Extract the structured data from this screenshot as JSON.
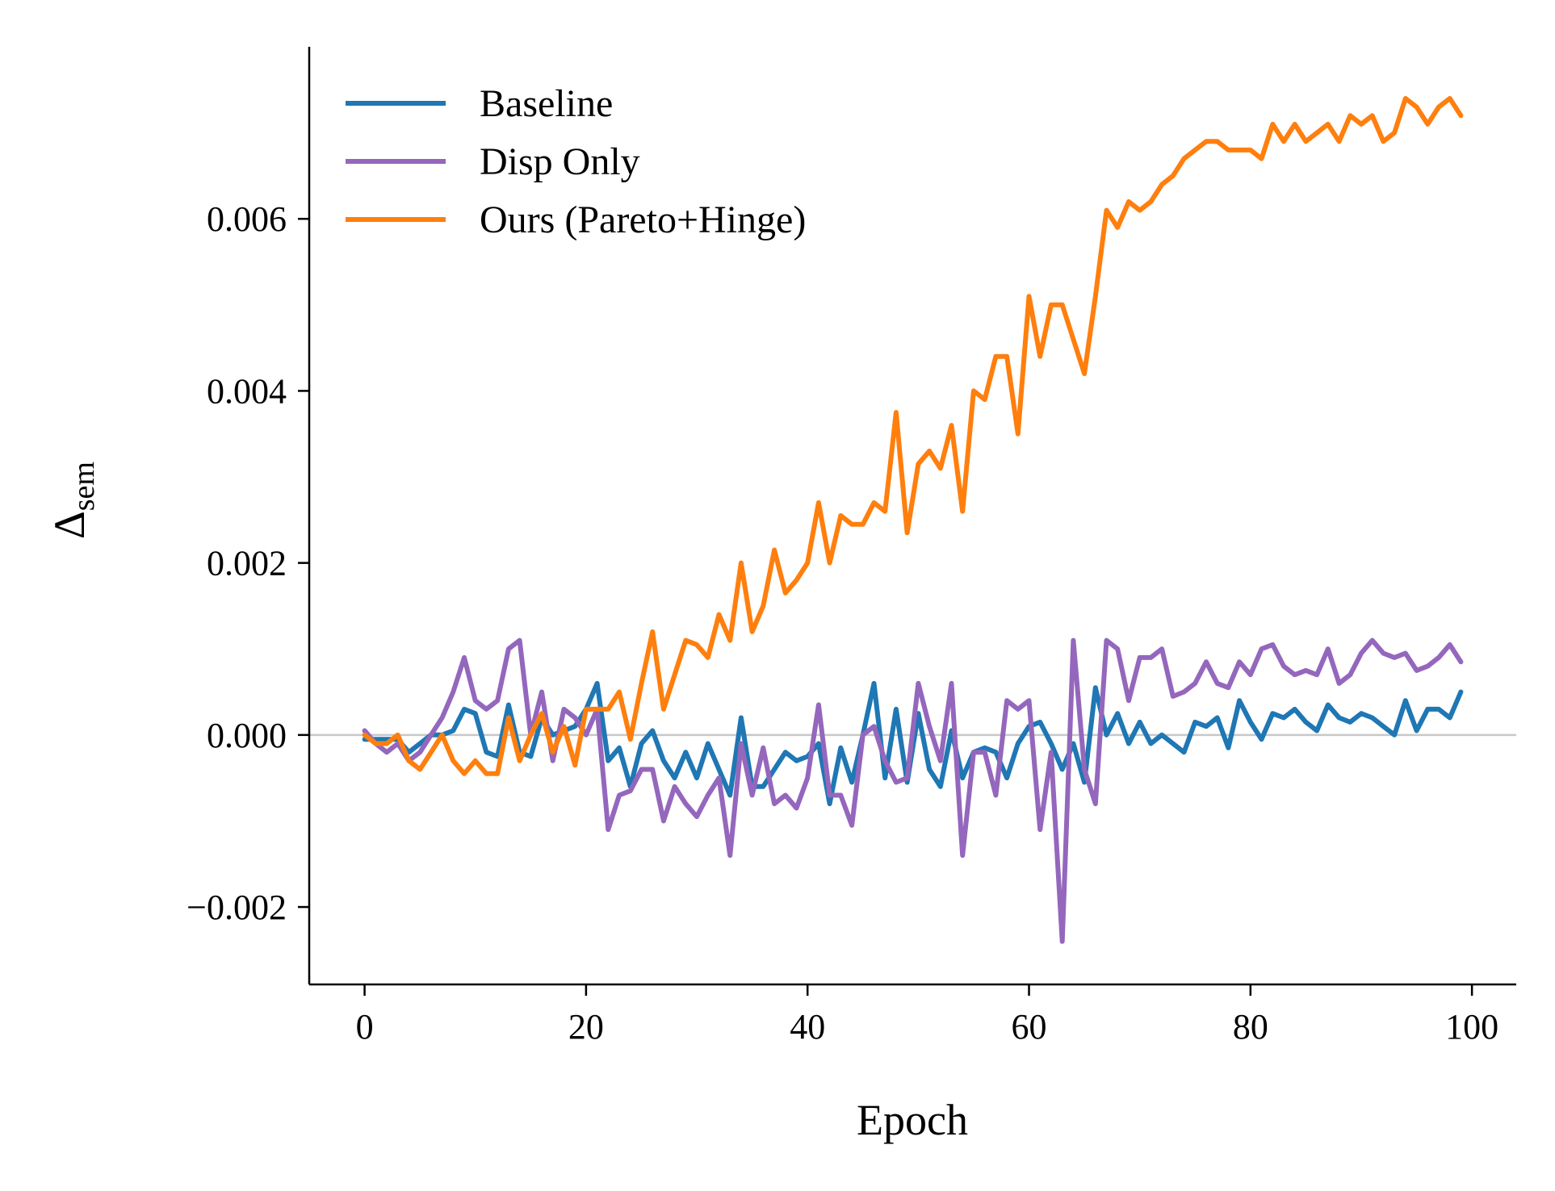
{
  "chart_data": {
    "type": "line",
    "xlabel": "Epoch",
    "ylabel": "Δ",
    "ylabel_subscript": "sem",
    "xlim": [
      -5,
      104
    ],
    "ylim": [
      -0.0029,
      0.008
    ],
    "xticks": [
      0,
      20,
      40,
      60,
      80,
      100
    ],
    "xtick_labels": [
      "0",
      "20",
      "40",
      "60",
      "80",
      "100"
    ],
    "yticks": [
      -0.002,
      0.0,
      0.002,
      0.004,
      0.006
    ],
    "ytick_labels": [
      "−0.002",
      "0.000",
      "0.002",
      "0.004",
      "0.006"
    ],
    "zero_line": true,
    "grid": false,
    "legend": "top-left",
    "series": [
      {
        "name": "Baseline",
        "color": "#1f77b4",
        "values": [
          -5e-05,
          -5e-05,
          -5e-05,
          -5e-05,
          -0.0002,
          -0.0001,
          0.0,
          0.0,
          5e-05,
          0.0003,
          0.00025,
          -0.0002,
          -0.00025,
          0.00035,
          -0.0002,
          -0.00025,
          0.0002,
          0.0,
          5e-05,
          0.0001,
          0.0003,
          0.0006,
          -0.0003,
          -0.00015,
          -0.0006,
          -0.0001,
          5e-05,
          -0.0003,
          -0.0005,
          -0.0002,
          -0.0005,
          -0.0001,
          -0.0004,
          -0.0007,
          0.0002,
          -0.0006,
          -0.0006,
          -0.0004,
          -0.0002,
          -0.0003,
          -0.00025,
          -0.0001,
          -0.0008,
          -0.00015,
          -0.00055,
          0.0,
          0.0006,
          -0.0005,
          0.0003,
          -0.00055,
          0.00025,
          -0.0004,
          -0.0006,
          5e-05,
          -0.0005,
          -0.0002,
          -0.00015,
          -0.0002,
          -0.0005,
          -0.0001,
          0.0001,
          0.00015,
          -0.0001,
          -0.0004,
          -0.0001,
          -0.00055,
          0.00055,
          0.0,
          0.00025,
          -0.0001,
          0.00015,
          -0.0001,
          0.0,
          -0.0001,
          -0.0002,
          0.00015,
          0.0001,
          0.0002,
          -0.00015,
          0.0004,
          0.00015,
          -5e-05,
          0.00025,
          0.0002,
          0.0003,
          0.00015,
          5e-05,
          0.00035,
          0.0002,
          0.00015,
          0.00025,
          0.0002,
          0.0001,
          0.0,
          0.0004,
          5e-05,
          0.0003,
          0.0003,
          0.0002,
          0.0005
        ]
      },
      {
        "name": "Disp Only",
        "color": "#9467bd",
        "values": [
          5e-05,
          -0.0001,
          -0.0002,
          -0.0001,
          -0.0003,
          -0.0002,
          0.0,
          0.0002,
          0.0005,
          0.0009,
          0.0004,
          0.0003,
          0.0004,
          0.001,
          0.0011,
          0.0,
          0.0005,
          -0.0003,
          0.0003,
          0.0002,
          0.0,
          0.0003,
          -0.0011,
          -0.0007,
          -0.00065,
          -0.0004,
          -0.0004,
          -0.001,
          -0.0006,
          -0.0008,
          -0.00095,
          -0.0007,
          -0.0005,
          -0.0014,
          -0.0001,
          -0.0007,
          -0.00015,
          -0.0008,
          -0.0007,
          -0.00085,
          -0.0005,
          0.00035,
          -0.0007,
          -0.0007,
          -0.00105,
          0.0,
          0.0001,
          -0.0003,
          -0.00055,
          -0.0005,
          0.0006,
          0.0001,
          -0.0003,
          0.0006,
          -0.0014,
          -0.0002,
          -0.0002,
          -0.0007,
          0.0004,
          0.0003,
          0.0004,
          -0.0011,
          -0.0002,
          -0.0024,
          0.0011,
          -0.0004,
          -0.0008,
          0.0011,
          0.001,
          0.0004,
          0.0009,
          0.0009,
          0.001,
          0.00045,
          0.0005,
          0.0006,
          0.00085,
          0.0006,
          0.00055,
          0.00085,
          0.0007,
          0.001,
          0.00105,
          0.0008,
          0.0007,
          0.00075,
          0.0007,
          0.001,
          0.0006,
          0.0007,
          0.00095,
          0.0011,
          0.00095,
          0.0009,
          0.00095,
          0.00075,
          0.0008,
          0.0009,
          0.00105,
          0.00085
        ]
      },
      {
        "name": "Ours (Pareto+Hinge)",
        "color": "#ff7f0e",
        "values": [
          0.0,
          -0.0001,
          -0.0001,
          0.0,
          -0.0003,
          -0.0004,
          -0.0002,
          0.0,
          -0.0003,
          -0.00045,
          -0.0003,
          -0.00045,
          -0.00045,
          0.0002,
          -0.0003,
          0.0,
          0.00025,
          -0.0002,
          0.0001,
          -0.00035,
          0.0003,
          0.0003,
          0.0003,
          0.0005,
          -5e-05,
          0.0006,
          0.0012,
          0.0003,
          0.0007,
          0.0011,
          0.00105,
          0.0009,
          0.0014,
          0.0011,
          0.002,
          0.0012,
          0.0015,
          0.00215,
          0.00165,
          0.0018,
          0.002,
          0.0027,
          0.002,
          0.00255,
          0.00245,
          0.00245,
          0.0027,
          0.0026,
          0.00375,
          0.00235,
          0.00315,
          0.0033,
          0.0031,
          0.0036,
          0.0026,
          0.004,
          0.0039,
          0.0044,
          0.0044,
          0.0035,
          0.0051,
          0.0044,
          0.005,
          0.005,
          0.0046,
          0.0042,
          0.0051,
          0.0061,
          0.0059,
          0.0062,
          0.0061,
          0.0062,
          0.0064,
          0.0065,
          0.0067,
          0.0068,
          0.0069,
          0.0069,
          0.0068,
          0.0068,
          0.0068,
          0.0067,
          0.0071,
          0.0069,
          0.0071,
          0.0069,
          0.007,
          0.0071,
          0.0069,
          0.0072,
          0.0071,
          0.0072,
          0.0069,
          0.007,
          0.0074,
          0.0073,
          0.0071,
          0.0073,
          0.0074,
          0.0072
        ]
      }
    ]
  }
}
